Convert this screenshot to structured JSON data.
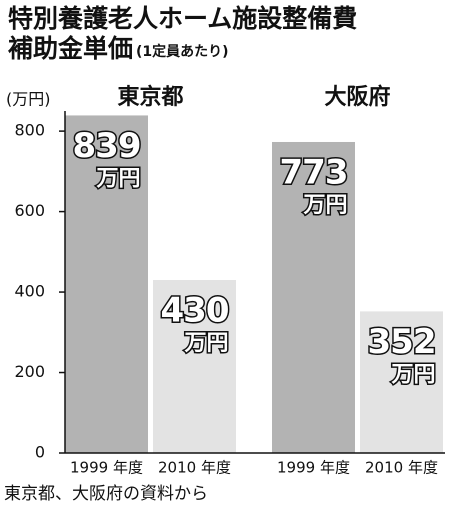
{
  "chart_data": {
    "type": "bar",
    "title": "特別養護老人ホーム施設整備費",
    "title_line2": "補助金単価",
    "subtitle": "(1定員あたり)",
    "y_label": "(万円)",
    "unit": "万円",
    "groups": [
      "東京都",
      "大阪府"
    ],
    "categories": [
      "1999 年度",
      "2010 年度",
      "1999 年度",
      "2010 年度"
    ],
    "values": [
      839,
      430,
      773,
      352
    ],
    "colors": [
      "#b3b3b3",
      "#e3e3e3",
      "#b3b3b3",
      "#e3e3e3"
    ],
    "ylim": [
      0,
      850
    ],
    "yticks": [
      0,
      200,
      400,
      600,
      800
    ],
    "source": "東京都、大阪府の資料から"
  }
}
